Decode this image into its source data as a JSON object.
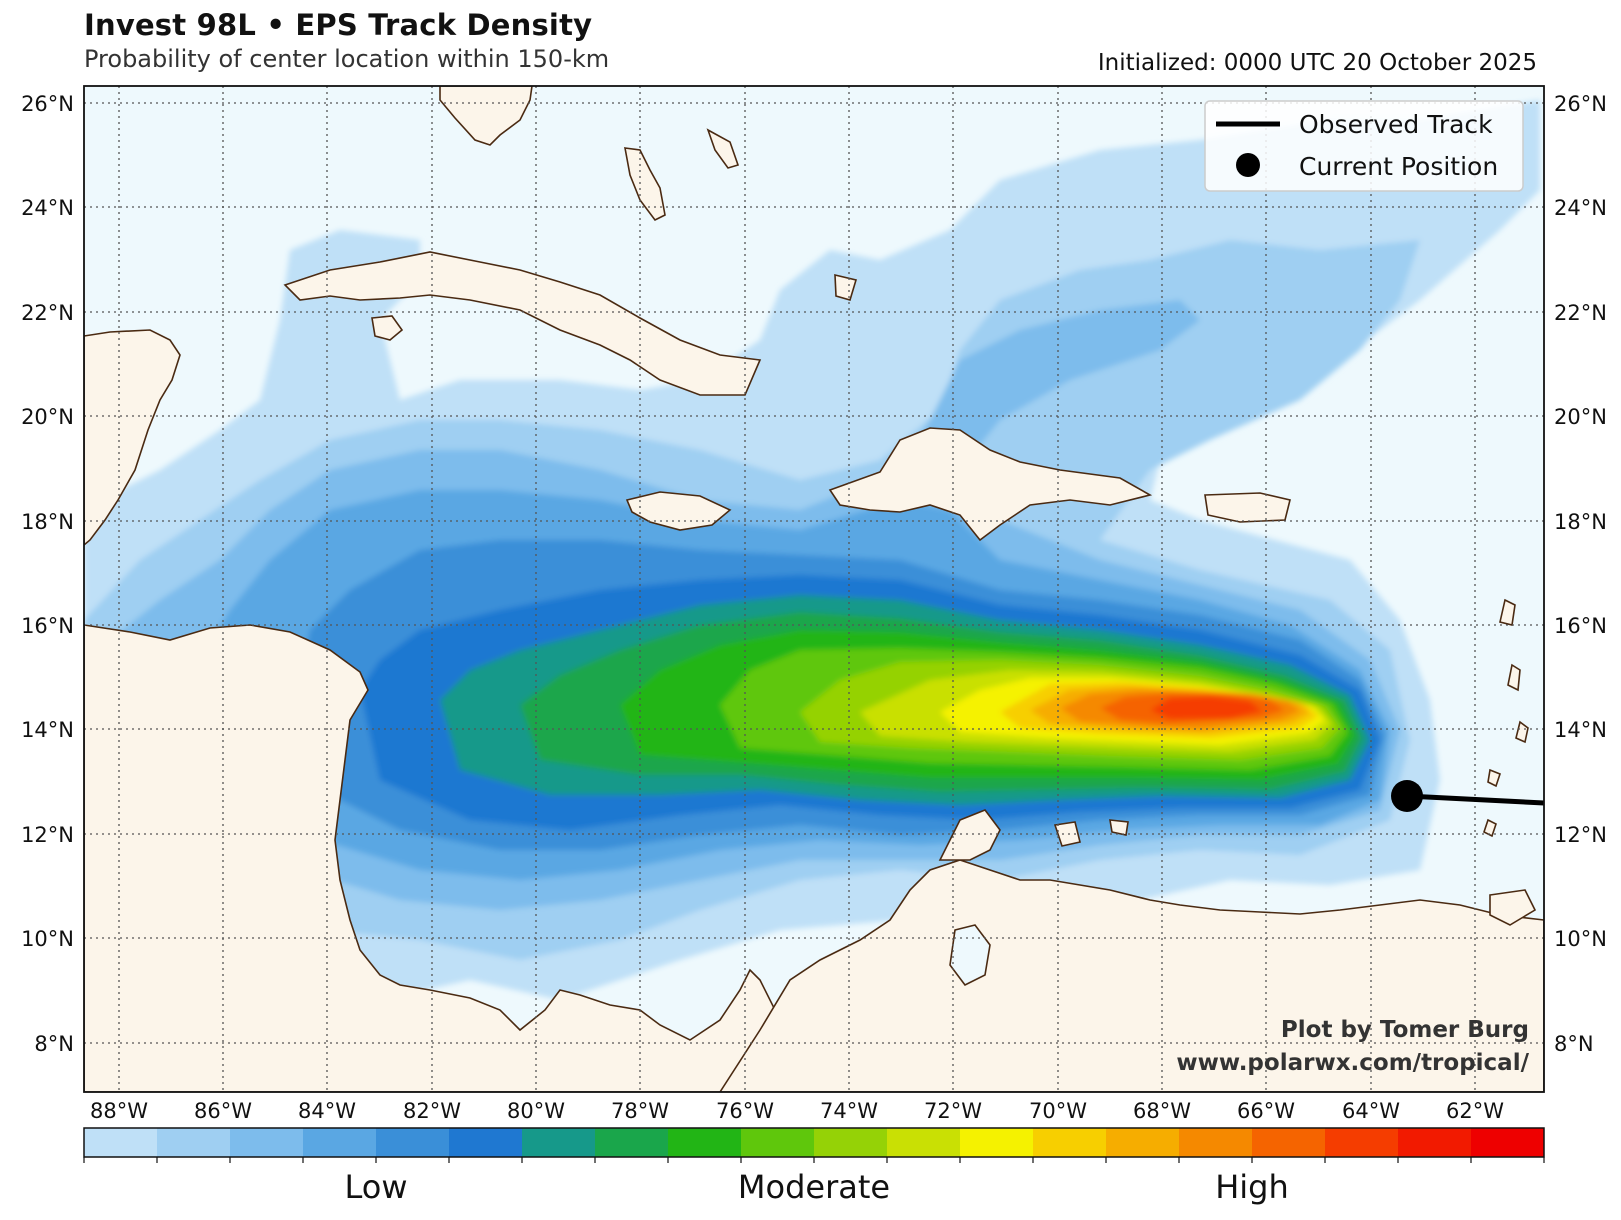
{
  "header": {
    "title": "Invest 98L • EPS Track Density",
    "subtitle": "Probability of center location within 150-km",
    "initialized": "Initialized: 0000 UTC 20 October 2025"
  },
  "legend": {
    "items": [
      {
        "label": "Observed Track",
        "symbol": "line"
      },
      {
        "label": "Current Position",
        "symbol": "dot"
      }
    ]
  },
  "credits": {
    "line1": "Plot by Tomer Burg",
    "line2": "www.polarwx.com/tropical/"
  },
  "colorbar": {
    "labels": [
      "Low",
      "Moderate",
      "High"
    ],
    "colors": [
      "#bfe0f7",
      "#9fcff2",
      "#7dbcec",
      "#5aa7e3",
      "#3a8fd8",
      "#1f78d1",
      "#16998a",
      "#1aa64b",
      "#22b515",
      "#5fc70c",
      "#95d206",
      "#c9e004",
      "#f5f200",
      "#f7cf00",
      "#f6ad00",
      "#f58900",
      "#f56400",
      "#f53d00",
      "#f21a00",
      "#ee0000"
    ]
  },
  "map": {
    "lon_range": [
      -89,
      -61
    ],
    "lat_range": [
      7,
      26.3
    ],
    "lat_ticks": [
      "26°N",
      "24°N",
      "22°N",
      "20°N",
      "18°N",
      "16°N",
      "14°N",
      "12°N",
      "10°N",
      "8°N"
    ],
    "lon_ticks": [
      "88°W",
      "86°W",
      "84°W",
      "82°W",
      "80°W",
      "78°W",
      "76°W",
      "74°W",
      "72°W",
      "70°W",
      "68°W",
      "66°W",
      "64°W",
      "62°W"
    ],
    "colors": {
      "ocean": "#eef9fd",
      "land": "#fcf5ea",
      "coast": "#4a2a12",
      "grid": "#555555"
    },
    "observed_track": [
      [
        -61.0,
        12.6
      ],
      [
        -63.5,
        12.8
      ]
    ],
    "current_position": [
      -63.5,
      12.8
    ]
  }
}
